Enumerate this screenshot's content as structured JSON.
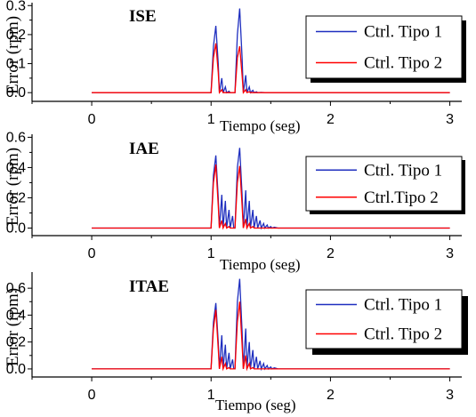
{
  "chart_data": [
    {
      "type": "line",
      "title": "ISE",
      "xlabel": "Tiempo (seg)",
      "ylabel": "Error (rpm)",
      "xlim": [
        -0.5,
        3.1
      ],
      "ylim": [
        -0.03,
        0.31
      ],
      "xticks": [
        0,
        1,
        2,
        3
      ],
      "yticks": [
        0.0,
        0.1,
        0.2,
        0.3
      ],
      "ytick_labels": [
        "0.0",
        "0.1",
        "0.2",
        "0.3"
      ],
      "legend_position": "top-right",
      "series": [
        {
          "name": "Ctrl. Tipo 1",
          "color": "#1f2fbf",
          "x": [
            0,
            1.0,
            1.02,
            1.04,
            1.06,
            1.07,
            1.09,
            1.1,
            1.12,
            1.13,
            1.15,
            1.16,
            1.18,
            1.2,
            1.22,
            1.24,
            1.26,
            1.27,
            1.29,
            1.3,
            1.32,
            1.33,
            1.35,
            1.36,
            1.38,
            1.39,
            1.42,
            1.45,
            1.5,
            3
          ],
          "y": [
            0,
            0,
            0.16,
            0.23,
            0.1,
            0.0,
            0.05,
            0.0,
            0.02,
            0.0,
            0.005,
            0.0,
            0.0,
            0.0,
            0.2,
            0.29,
            0.12,
            0.0,
            0.06,
            0.0,
            0.02,
            0.0,
            0.008,
            0.0,
            0.003,
            0.0,
            0.001,
            0.0,
            0.0,
            0.0
          ]
        },
        {
          "name": "Ctrl. Tipo 2",
          "color": "#ff0000",
          "x": [
            0,
            1.0,
            1.02,
            1.04,
            1.06,
            1.07,
            1.09,
            1.1,
            1.2,
            1.22,
            1.24,
            1.26,
            1.27,
            1.29,
            1.3,
            1.32,
            1.33,
            1.4,
            3
          ],
          "y": [
            0,
            0,
            0.12,
            0.17,
            0.07,
            0.0,
            0.01,
            0.0,
            0.0,
            0.12,
            0.16,
            0.06,
            0.0,
            0.01,
            0.0,
            0.003,
            0.0,
            0.0,
            0.0
          ]
        }
      ]
    },
    {
      "type": "line",
      "title": "IAE",
      "xlabel": "Tiempo (seg)",
      "ylabel": "Error (rpm)",
      "xlim": [
        -0.5,
        3.1
      ],
      "ylim": [
        -0.05,
        0.62
      ],
      "xticks": [
        0,
        1,
        2,
        3
      ],
      "yticks": [
        0.0,
        0.2,
        0.4,
        0.6
      ],
      "ytick_labels": [
        "0.0",
        "0.2",
        "0.4",
        "0.6"
      ],
      "legend_position": "top-right",
      "series": [
        {
          "name": "Ctrl. Tipo 1",
          "color": "#1f2fbf",
          "x": [
            0,
            1.0,
            1.02,
            1.04,
            1.06,
            1.07,
            1.09,
            1.1,
            1.12,
            1.13,
            1.15,
            1.16,
            1.18,
            1.19,
            1.2,
            1.22,
            1.24,
            1.26,
            1.27,
            1.29,
            1.3,
            1.32,
            1.33,
            1.35,
            1.36,
            1.38,
            1.39,
            1.41,
            1.42,
            1.44,
            1.45,
            1.47,
            1.48,
            1.5,
            1.51,
            1.53,
            1.56,
            1.6,
            3
          ],
          "y": [
            0,
            0,
            0.35,
            0.48,
            0.2,
            0.0,
            0.22,
            0.0,
            0.18,
            0.0,
            0.12,
            0.0,
            0.08,
            0.0,
            0.0,
            0.4,
            0.53,
            0.22,
            0.0,
            0.25,
            0.0,
            0.18,
            0.0,
            0.12,
            0.0,
            0.08,
            0.0,
            0.05,
            0.0,
            0.03,
            0.0,
            0.02,
            0.0,
            0.01,
            0.0,
            0.005,
            0.0,
            0.0,
            0.0
          ]
        },
        {
          "name": "Ctrl.Tipo 2",
          "color": "#ff0000",
          "x": [
            0,
            1.0,
            1.02,
            1.04,
            1.06,
            1.07,
            1.09,
            1.1,
            1.12,
            1.13,
            1.15,
            1.16,
            1.2,
            1.22,
            1.24,
            1.26,
            1.27,
            1.29,
            1.3,
            1.32,
            1.33,
            1.35,
            1.36,
            1.4,
            3
          ],
          "y": [
            0,
            0,
            0.3,
            0.42,
            0.15,
            0.0,
            0.05,
            0.0,
            0.03,
            0.0,
            0.01,
            0.0,
            0.0,
            0.3,
            0.41,
            0.15,
            0.0,
            0.06,
            0.0,
            0.03,
            0.0,
            0.01,
            0.0,
            0.0,
            0.0
          ]
        }
      ]
    },
    {
      "type": "line",
      "title": "ITAE",
      "xlabel": "Tiempo (seg)",
      "ylabel": "Error (rpm)",
      "xlim": [
        -0.5,
        3.1
      ],
      "ylim": [
        -0.06,
        0.72
      ],
      "xticks": [
        0,
        1,
        2,
        3
      ],
      "yticks": [
        0.0,
        0.2,
        0.4,
        0.6
      ],
      "ytick_labels": [
        "0.0",
        "0.2",
        "0.4",
        "0.6"
      ],
      "legend_position": "top-right",
      "series": [
        {
          "name": "Ctrl. Tipo 1",
          "color": "#1f2fbf",
          "x": [
            0,
            1.0,
            1.02,
            1.04,
            1.06,
            1.07,
            1.09,
            1.1,
            1.12,
            1.13,
            1.15,
            1.16,
            1.18,
            1.19,
            1.2,
            1.22,
            1.24,
            1.26,
            1.27,
            1.29,
            1.3,
            1.32,
            1.33,
            1.35,
            1.36,
            1.38,
            1.39,
            1.41,
            1.42,
            1.44,
            1.45,
            1.47,
            1.48,
            1.5,
            1.51,
            1.53,
            1.56,
            1.6,
            3
          ],
          "y": [
            0,
            0,
            0.35,
            0.49,
            0.2,
            0.0,
            0.25,
            0.0,
            0.18,
            0.0,
            0.12,
            0.0,
            0.07,
            0.0,
            0.0,
            0.5,
            0.67,
            0.28,
            0.0,
            0.3,
            0.0,
            0.2,
            0.0,
            0.14,
            0.0,
            0.09,
            0.0,
            0.06,
            0.0,
            0.04,
            0.0,
            0.025,
            0.0,
            0.015,
            0.0,
            0.008,
            0.0,
            0.0,
            0.0
          ]
        },
        {
          "name": "Ctrl. Tipo 2",
          "color": "#ff0000",
          "x": [
            0,
            1.0,
            1.02,
            1.04,
            1.06,
            1.07,
            1.09,
            1.1,
            1.12,
            1.13,
            1.15,
            1.16,
            1.2,
            1.22,
            1.24,
            1.26,
            1.27,
            1.29,
            1.3,
            1.32,
            1.33,
            1.35,
            1.36,
            1.4,
            3
          ],
          "y": [
            0,
            0,
            0.3,
            0.44,
            0.15,
            0.0,
            0.09,
            0.0,
            0.04,
            0.0,
            0.01,
            0.0,
            0.0,
            0.35,
            0.5,
            0.18,
            0.0,
            0.1,
            0.0,
            0.04,
            0.0,
            0.01,
            0.0,
            0.0,
            0.0
          ]
        }
      ]
    }
  ]
}
